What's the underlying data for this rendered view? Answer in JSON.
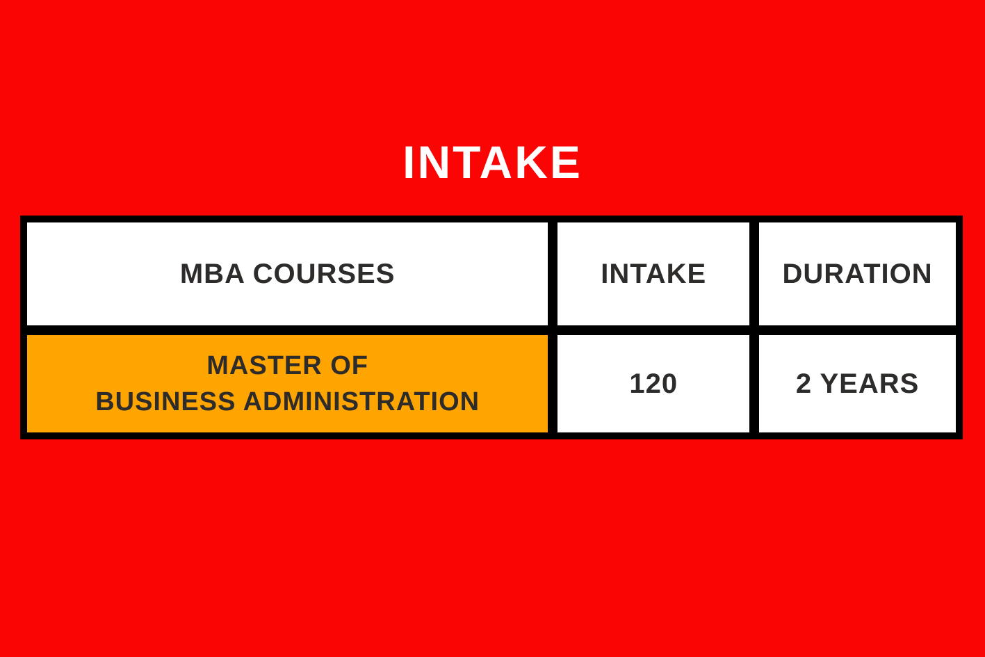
{
  "title": "INTAKE",
  "table": {
    "headers": [
      "MBA COURSES",
      "INTAKE",
      "DURATION"
    ],
    "rows": [
      {
        "course": "MASTER OF\nBUSINESS ADMINISTRATION",
        "intake": "120",
        "duration": "2 YEARS"
      }
    ]
  },
  "chart_data": {
    "type": "table",
    "title": "INTAKE",
    "columns": [
      "MBA COURSES",
      "INTAKE",
      "DURATION"
    ],
    "rows": [
      [
        "MASTER OF BUSINESS ADMINISTRATION",
        "120",
        "2 YEARS"
      ]
    ],
    "highlighted_cells": [
      "MASTER OF BUSINESS ADMINISTRATION"
    ]
  },
  "colors": {
    "background_red": "#FB0404",
    "highlight_orange": "#FFA502",
    "table_border_black": "#000000",
    "cell_white": "#FFFFFF",
    "text_dark": "#2E2C2B",
    "title_white": "#FFFFFF"
  }
}
